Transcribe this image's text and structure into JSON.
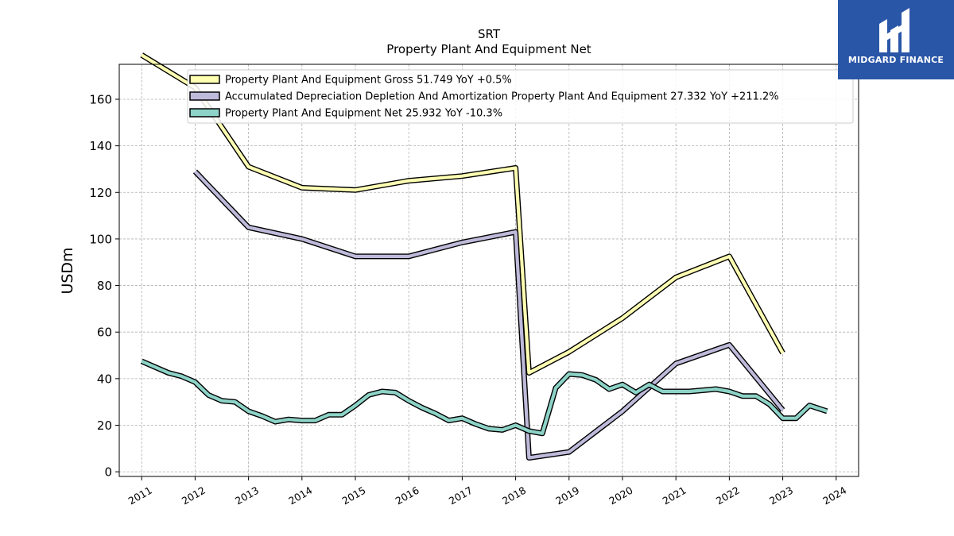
{
  "brand": {
    "name": "MIDGARD FINANCE",
    "bg_color": "#2a56a8"
  },
  "chart_data": {
    "type": "line",
    "title": "SRT",
    "subtitle": "Property Plant And Equipment Net",
    "ylabel": "USDm",
    "xlabel": "",
    "ylim": [
      -2,
      175
    ],
    "xlim": [
      2010.58,
      2024.42
    ],
    "yticks": [
      0,
      20,
      40,
      60,
      80,
      100,
      120,
      140,
      160
    ],
    "xticks": [
      "2011",
      "2012",
      "2013",
      "2014",
      "2015",
      "2016",
      "2017",
      "2018",
      "2019",
      "2020",
      "2021",
      "2022",
      "2023",
      "2024"
    ],
    "grid": true,
    "legend_position": "top",
    "series": [
      {
        "name": "Property Plant And Equipment Gross",
        "legend_label": "Property Plant And Equipment Gross  51.749 YoY +0.5%",
        "color": "#ffffb3",
        "points": [
          [
            2011.0,
            179
          ],
          [
            2012.0,
            165
          ],
          [
            2013.0,
            131
          ],
          [
            2014.0,
            122
          ],
          [
            2015.0,
            121
          ],
          [
            2016.0,
            125
          ],
          [
            2017.0,
            127
          ],
          [
            2018.0,
            130.5
          ],
          [
            2018.25,
            42.5
          ],
          [
            2019.0,
            51.5
          ],
          [
            2020.0,
            66
          ],
          [
            2021.0,
            83.5
          ],
          [
            2022.0,
            92.5
          ],
          [
            2023.0,
            51
          ]
        ]
      },
      {
        "name": "Accumulated Depreciation Depletion And Amortization Property Plant And Equipment",
        "legend_label": "Accumulated Depreciation Depletion And Amortization Property Plant And Equipment  27.332 YoY +211.2%",
        "color": "#bebada",
        "points": [
          [
            2012.0,
            129
          ],
          [
            2013.0,
            105
          ],
          [
            2014.0,
            100
          ],
          [
            2015.0,
            92.5
          ],
          [
            2016.0,
            92.5
          ],
          [
            2017.0,
            98.5
          ],
          [
            2018.0,
            103
          ],
          [
            2018.25,
            6
          ],
          [
            2019.0,
            8.5
          ],
          [
            2020.0,
            26
          ],
          [
            2021.0,
            46.5
          ],
          [
            2022.0,
            54.5
          ],
          [
            2023.0,
            26.5
          ]
        ]
      },
      {
        "name": "Property Plant And Equipment Net",
        "legend_label": "Property Plant And Equipment Net  25.932 YoY -10.3%",
        "color": "#8dd3c7",
        "points": [
          [
            2011.0,
            47.5
          ],
          [
            2011.5,
            42.5
          ],
          [
            2011.75,
            41
          ],
          [
            2012.0,
            38.5
          ],
          [
            2012.25,
            33
          ],
          [
            2012.5,
            30.5
          ],
          [
            2012.75,
            30
          ],
          [
            2013.0,
            26
          ],
          [
            2013.25,
            24
          ],
          [
            2013.5,
            21.5
          ],
          [
            2013.75,
            22.5
          ],
          [
            2014.0,
            22
          ],
          [
            2014.25,
            22
          ],
          [
            2014.5,
            24.5
          ],
          [
            2014.75,
            24.5
          ],
          [
            2015.0,
            28.5
          ],
          [
            2015.25,
            33
          ],
          [
            2015.5,
            34.5
          ],
          [
            2015.75,
            34
          ],
          [
            2016.0,
            30.5
          ],
          [
            2016.25,
            27.5
          ],
          [
            2016.5,
            25
          ],
          [
            2016.75,
            22
          ],
          [
            2017.0,
            23
          ],
          [
            2017.25,
            20.5
          ],
          [
            2017.5,
            18.5
          ],
          [
            2017.75,
            18
          ],
          [
            2018.0,
            20
          ],
          [
            2018.25,
            17.5
          ],
          [
            2018.5,
            16.5
          ],
          [
            2018.75,
            36
          ],
          [
            2019.0,
            42
          ],
          [
            2019.25,
            41.5
          ],
          [
            2019.5,
            39.5
          ],
          [
            2019.75,
            35.5
          ],
          [
            2020.0,
            37.5
          ],
          [
            2020.25,
            34
          ],
          [
            2020.5,
            37.5
          ],
          [
            2020.75,
            34.5
          ],
          [
            2021.0,
            34.5
          ],
          [
            2021.25,
            34.5
          ],
          [
            2021.5,
            35
          ],
          [
            2021.75,
            35.5
          ],
          [
            2022.0,
            34.5
          ],
          [
            2022.25,
            32.5
          ],
          [
            2022.5,
            32.5
          ],
          [
            2022.75,
            29
          ],
          [
            2023.0,
            23
          ],
          [
            2023.25,
            23
          ],
          [
            2023.5,
            28.5
          ],
          [
            2023.83,
            26
          ]
        ]
      }
    ]
  }
}
